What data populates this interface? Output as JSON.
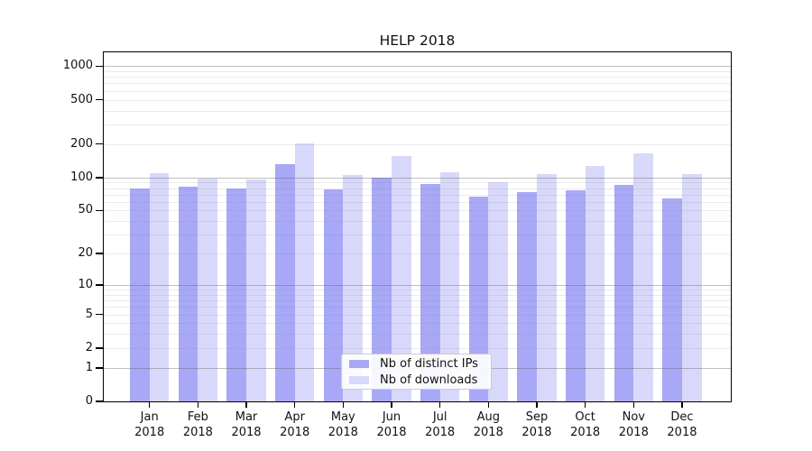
{
  "title": "HELP 2018",
  "legend": {
    "items": [
      {
        "label": "Nb of distinct IPs",
        "color": "#a8a8f7"
      },
      {
        "label": "Nb of downloads",
        "color": "#d8d8fa"
      }
    ]
  },
  "colors": {
    "bar_distinct_ips": "#a8a8f7",
    "bar_downloads": "#d8d8fa",
    "grid_major": "#b6b6b6",
    "grid_minor": "#e9e9e9",
    "axis": "#000000"
  },
  "chart_data": {
    "type": "bar",
    "title": "HELP 2018",
    "categories": [
      "Jan",
      "Feb",
      "Mar",
      "Apr",
      "May",
      "Jun",
      "Jul",
      "Aug",
      "Sep",
      "Oct",
      "Nov",
      "Dec"
    ],
    "category_year": "2018",
    "series": [
      {
        "name": "Nb of distinct IPs",
        "color": "#a8a8f7",
        "values": [
          79,
          83,
          80,
          131,
          78,
          100,
          88,
          67,
          73,
          76,
          85,
          65
        ]
      },
      {
        "name": "Nb of downloads",
        "color": "#d8d8fa",
        "values": [
          109,
          98,
          95,
          204,
          105,
          157,
          111,
          91,
          108,
          126,
          165,
          107
        ]
      }
    ],
    "xlabel": "",
    "ylabel": "",
    "yscale": "symlog (position proportional to ln(1+value))",
    "y_ticks": [
      1000,
      500,
      200,
      100,
      50,
      20,
      10,
      5,
      2,
      1,
      0
    ],
    "y_major_gridlines": [
      1,
      10,
      100,
      1000
    ],
    "ylim": [
      0,
      1300
    ],
    "grid": true,
    "legend_position": "lower center"
  }
}
